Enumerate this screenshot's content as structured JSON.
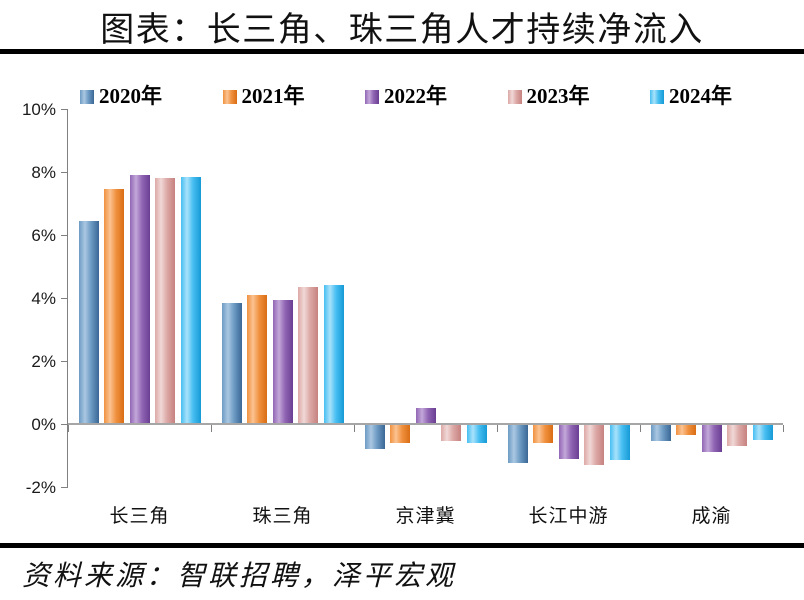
{
  "title": "图表：长三角、珠三角人才持续净流入",
  "source": "资料来源：智联招聘，泽平宏观",
  "chart_data": {
    "type": "bar",
    "title": "图表：长三角、珠三角人才持续净流入",
    "categories": [
      "长三角",
      "珠三角",
      "京津冀",
      "长江中游",
      "成渝"
    ],
    "series": [
      {
        "name": "2020年",
        "values": [
          6.45,
          3.85,
          -0.8,
          -1.25,
          -0.55
        ],
        "color_mid": "#6d9bc4",
        "color_light": "#aac7e1",
        "color_dark": "#3a6795"
      },
      {
        "name": "2021年",
        "values": [
          7.45,
          4.1,
          -0.6,
          -0.6,
          -0.35
        ],
        "color_mid": "#f0913f",
        "color_light": "#fbc392",
        "color_dark": "#d96d15"
      },
      {
        "name": "2022年",
        "values": [
          7.9,
          3.95,
          0.5,
          -1.1,
          -0.9
        ],
        "color_mid": "#9166b4",
        "color_light": "#c3a7d9",
        "color_dark": "#6a3d92"
      },
      {
        "name": "2023年",
        "values": [
          7.8,
          4.35,
          -0.55,
          -1.3,
          -0.7
        ],
        "color_mid": "#dca8a6",
        "color_light": "#f0d8d7",
        "color_dark": "#c6827f"
      },
      {
        "name": "2024年",
        "values": [
          7.85,
          4.4,
          -0.6,
          -1.15,
          -0.5
        ],
        "color_mid": "#47bef1",
        "color_light": "#a8e2fa",
        "color_dark": "#169ad6"
      }
    ],
    "xlabel": "",
    "ylabel": "",
    "ylim": [
      -2,
      10
    ],
    "ytick_step": 2,
    "ytick_suffix": "%",
    "grid": false,
    "legend_position": "top"
  }
}
